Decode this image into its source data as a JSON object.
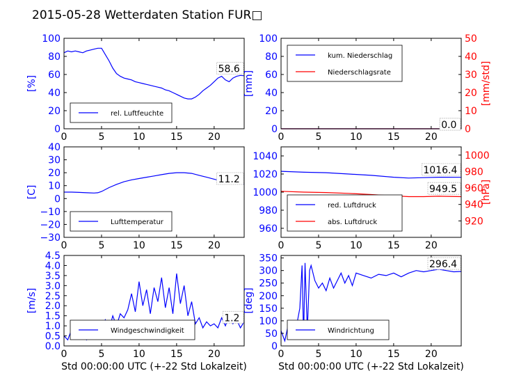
{
  "title": "2015-05-28 Wetterdaten Station FUR□",
  "colors": {
    "blue": "#0000ff",
    "red": "#ff0000",
    "black": "#000000"
  },
  "chart_data": [
    {
      "id": "p1",
      "type": "line",
      "ylabel": "[%]",
      "xlim": [
        0,
        24
      ],
      "ylim": [
        0,
        100
      ],
      "xticks": [
        "0",
        "5",
        "10",
        "15",
        "20"
      ],
      "yticks": [
        "0",
        "20",
        "40",
        "60",
        "80",
        "100"
      ],
      "annotation": "58.6",
      "legend": {
        "position": "lower-left",
        "entries": [
          "rel. Luftfeuchte"
        ]
      },
      "series": [
        {
          "name": "rel. Luftfeuchte",
          "color": "#0000ff",
          "x": [
            0,
            0.5,
            1,
            1.5,
            2,
            2.5,
            3,
            3.5,
            4,
            4.5,
            5,
            5.5,
            6,
            6.5,
            7,
            7.5,
            8,
            8.5,
            9,
            9.5,
            10,
            10.5,
            11,
            11.5,
            12,
            12.5,
            13,
            13.5,
            14,
            14.5,
            15,
            15.5,
            16,
            16.5,
            17,
            17.5,
            18,
            18.5,
            19,
            19.5,
            20,
            20.5,
            21,
            21.5,
            22,
            22.5,
            23,
            23.5,
            24
          ],
          "y": [
            84,
            86,
            85,
            86,
            85,
            84,
            86,
            87,
            88,
            89,
            89,
            82,
            75,
            67,
            61,
            58,
            56,
            55,
            54,
            52,
            51,
            50,
            49,
            48,
            47,
            46,
            45,
            43,
            42,
            40,
            38,
            36,
            34,
            33,
            33,
            35,
            38,
            42,
            45,
            48,
            52,
            56,
            58,
            54,
            52,
            56,
            58,
            59,
            58.6
          ]
        }
      ]
    },
    {
      "id": "p2",
      "type": "line",
      "ylabel": "[mm]",
      "y2label": "[mm/std]",
      "xlim": [
        0,
        24
      ],
      "ylim": [
        0,
        100
      ],
      "y2lim": [
        0,
        50
      ],
      "xticks": [
        "0",
        "5",
        "10",
        "15",
        "20"
      ],
      "yticks": [
        "0",
        "20",
        "40",
        "60",
        "80",
        "100"
      ],
      "y2ticks": [
        "0",
        "10",
        "20",
        "30",
        "40",
        "50"
      ],
      "annotation": "0.0",
      "annotation2": "0.0",
      "legend": {
        "position": "upper-left",
        "entries": [
          "kum. Niederschlag",
          "Niederschlagsrate"
        ]
      },
      "series": [
        {
          "name": "kum. Niederschlag",
          "color": "#0000ff",
          "x": [
            0,
            24
          ],
          "y": [
            0,
            0
          ]
        },
        {
          "name": "Niederschlagsrate",
          "color": "#ff0000",
          "x": [
            0,
            24
          ],
          "y": [
            0,
            0
          ]
        }
      ]
    },
    {
      "id": "p3",
      "type": "line",
      "ylabel": "[C]",
      "xlim": [
        0,
        24
      ],
      "ylim": [
        -30,
        40
      ],
      "xticks": [
        "0",
        "5",
        "10",
        "15",
        "20"
      ],
      "yticks": [
        "−30",
        "−20",
        "−10",
        "0",
        "10",
        "20",
        "30",
        "40"
      ],
      "annotation": "11.2",
      "legend": {
        "position": "lower-left",
        "entries": [
          "Lufttemperatur"
        ]
      },
      "series": [
        {
          "name": "Lufttemperatur",
          "color": "#0000ff",
          "x": [
            0,
            1,
            2,
            3,
            4,
            4.5,
            5,
            6,
            7,
            8,
            9,
            10,
            11,
            12,
            13,
            14,
            15,
            16,
            17,
            18,
            19,
            20,
            21,
            22,
            23,
            24
          ],
          "y": [
            5,
            5,
            4.8,
            4.5,
            4.3,
            4.5,
            5.5,
            8.5,
            11,
            13,
            14.5,
            15.5,
            16.5,
            17.5,
            18.5,
            19.5,
            20,
            20,
            19.5,
            18,
            16.5,
            15,
            13.5,
            12.5,
            11.5,
            11.2
          ]
        }
      ]
    },
    {
      "id": "p4",
      "type": "line",
      "ylabel": "",
      "y2label": "[hPa]",
      "xlim": [
        0,
        24
      ],
      "ylim": [
        950,
        1050
      ],
      "y2lim": [
        900,
        1010
      ],
      "xticks": [
        "0",
        "5",
        "10",
        "15",
        "20"
      ],
      "yticks": [
        "960",
        "980",
        "1000",
        "1020",
        "1040"
      ],
      "y2ticks": [
        "920",
        "940",
        "960",
        "980",
        "1000"
      ],
      "annotation": "1016.4",
      "annotation2": "949.5",
      "legend": {
        "position": "lower-left",
        "entries": [
          "red. Luftdruck",
          "abs. Luftdruck"
        ]
      },
      "series": [
        {
          "name": "red. Luftdruck",
          "color": "#0000ff",
          "axis": "left",
          "x": [
            0,
            3,
            6,
            9,
            12,
            15,
            17,
            19,
            21,
            24
          ],
          "y": [
            1023,
            1022,
            1021.5,
            1020,
            1018.5,
            1016.5,
            1015.5,
            1016,
            1016.5,
            1016.4
          ]
        },
        {
          "name": "abs. Luftdruck",
          "color": "#ff0000",
          "axis": "right",
          "x": [
            0,
            3,
            6,
            9,
            12,
            15,
            17,
            19,
            21,
            24
          ],
          "y": [
            956,
            955,
            954.5,
            953.5,
            952,
            950.5,
            949.5,
            949.5,
            950,
            949.5
          ]
        }
      ]
    },
    {
      "id": "p5",
      "type": "line",
      "ylabel": "[m/s]",
      "xlabel": "Std 00:00:00 UTC (+-22 Std Lokalzeit)",
      "xlim": [
        0,
        24
      ],
      "ylim": [
        0,
        4.5
      ],
      "xticks": [
        "0",
        "5",
        "10",
        "15",
        "20"
      ],
      "yticks": [
        "0.0",
        "0.5",
        "1.0",
        "1.5",
        "2.0",
        "2.5",
        "3.0",
        "3.5",
        "4.0",
        "4.5"
      ],
      "annotation": "1.2",
      "legend": {
        "position": "lower-center",
        "entries": [
          "Windgeschwindigkeit"
        ]
      },
      "series": [
        {
          "name": "Windgeschwindigkeit",
          "color": "#0000ff",
          "x": [
            0,
            0.5,
            1,
            1.5,
            2,
            2.5,
            3,
            3.5,
            4,
            4.5,
            5,
            5.5,
            6,
            6.5,
            7,
            7.5,
            8,
            8.5,
            9,
            9.5,
            10,
            10.5,
            11,
            11.5,
            12,
            12.5,
            13,
            13.5,
            14,
            14.5,
            15,
            15.5,
            16,
            16.5,
            17,
            17.5,
            18,
            18.5,
            19,
            19.5,
            20,
            20.5,
            21,
            21.5,
            22,
            22.5,
            23,
            23.5,
            24
          ],
          "y": [
            0.5,
            0.3,
            0.8,
            0.5,
            0.4,
            0.6,
            0.3,
            0.5,
            0.7,
            0.4,
            1.0,
            1.3,
            0.8,
            1.5,
            1.0,
            1.6,
            1.4,
            1.8,
            2.6,
            1.7,
            3.2,
            2.0,
            2.8,
            1.6,
            2.9,
            2.2,
            3.4,
            1.9,
            2.9,
            1.6,
            3.6,
            2.1,
            3.0,
            1.5,
            2.2,
            1.1,
            1.4,
            0.9,
            1.2,
            1.0,
            1.1,
            0.9,
            1.4,
            1.0,
            1.5,
            1.1,
            1.3,
            0.9,
            1.2
          ]
        }
      ]
    },
    {
      "id": "p6",
      "type": "line",
      "ylabel": "[deg]",
      "xlabel": "Std 00:00:00 UTC (+-22 Std Lokalzeit)",
      "xlim": [
        0,
        24
      ],
      "ylim": [
        0,
        360
      ],
      "xticks": [
        "0",
        "5",
        "10",
        "15",
        "20"
      ],
      "yticks": [
        "0",
        "50",
        "100",
        "150",
        "200",
        "250",
        "300",
        "350"
      ],
      "annotation": "296.4",
      "legend": {
        "position": "lower-left",
        "entries": [
          "Windrichtung"
        ]
      },
      "series": [
        {
          "name": "Windrichtung",
          "color": "#0000ff",
          "x": [
            0,
            0.5,
            1,
            1.5,
            2,
            2.5,
            2.8,
            3.0,
            3.2,
            3.5,
            3.8,
            4,
            4.5,
            5,
            5.5,
            6,
            6.5,
            7,
            7.5,
            8,
            8.5,
            9,
            9.5,
            10,
            11,
            12,
            13,
            14,
            15,
            16,
            17,
            18,
            19,
            20,
            21,
            22,
            23,
            24
          ],
          "y": [
            60,
            20,
            90,
            40,
            70,
            150,
            320,
            30,
            330,
            60,
            300,
            320,
            260,
            230,
            250,
            220,
            270,
            230,
            260,
            290,
            250,
            280,
            240,
            290,
            280,
            270,
            285,
            280,
            290,
            275,
            290,
            300,
            295,
            300,
            305,
            300,
            295,
            296.4
          ]
        }
      ]
    }
  ]
}
